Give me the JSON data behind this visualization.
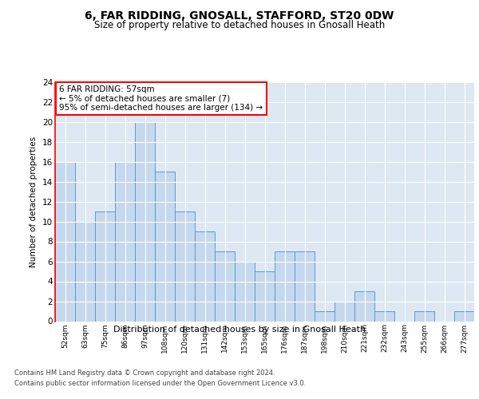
{
  "title": "6, FAR RIDDING, GNOSALL, STAFFORD, ST20 0DW",
  "subtitle": "Size of property relative to detached houses in Gnosall Heath",
  "xlabel": "Distribution of detached houses by size in Gnosall Heath",
  "ylabel": "Number of detached properties",
  "categories": [
    "52sqm",
    "63sqm",
    "75sqm",
    "86sqm",
    "97sqm",
    "108sqm",
    "120sqm",
    "131sqm",
    "142sqm",
    "153sqm",
    "165sqm",
    "176sqm",
    "187sqm",
    "198sqm",
    "210sqm",
    "221sqm",
    "232sqm",
    "243sqm",
    "255sqm",
    "266sqm",
    "277sqm"
  ],
  "values": [
    16,
    10,
    11,
    16,
    20,
    15,
    11,
    9,
    7,
    6,
    5,
    7,
    7,
    1,
    2,
    3,
    1,
    0,
    1,
    0,
    1
  ],
  "bar_color": "#c5d8ed",
  "bar_edge_color": "#5b9bd5",
  "annotation_text": "6 FAR RIDDING: 57sqm\n← 5% of detached houses are smaller (7)\n95% of semi-detached houses are larger (134) →",
  "annotation_box_color": "white",
  "annotation_box_edge_color": "red",
  "ylim": [
    0,
    24
  ],
  "yticks": [
    0,
    2,
    4,
    6,
    8,
    10,
    12,
    14,
    16,
    18,
    20,
    22,
    24
  ],
  "background_color": "#dde8f3",
  "footer_line1": "Contains HM Land Registry data © Crown copyright and database right 2024.",
  "footer_line2": "Contains public sector information licensed under the Open Government Licence v3.0."
}
